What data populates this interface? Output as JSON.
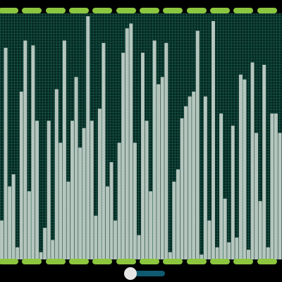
{
  "colors": {
    "background": "#000000",
    "panel": "#062a22",
    "grid": "#2f8f7d",
    "bar_fill": "#b8c8c0",
    "bar_grid": "#9fb8b0",
    "dash_lime": "#8cc63f",
    "slider_track": "#0e5a70",
    "slider_thumb": "#e6e6e6"
  },
  "top_strip": {
    "dash_count": 12
  },
  "bottom_strip": {
    "dash_count": 12
  },
  "slider": {
    "value": 0.0
  },
  "chart_data": {
    "type": "bar",
    "ylim": [
      0,
      1
    ],
    "grid": true,
    "values": [
      0.16,
      0.87,
      0.3,
      0.35,
      0.05,
      0.69,
      0.9,
      0.28,
      0.88,
      0.57,
      0.03,
      0.13,
      0.57,
      0.08,
      0.7,
      0.48,
      0.9,
      0.32,
      0.57,
      0.75,
      0.46,
      0.54,
      1.0,
      0.57,
      0.18,
      0.62,
      0.89,
      0.3,
      0.4,
      0.16,
      0.48,
      0.85,
      0.95,
      0.97,
      0.48,
      0.1,
      0.85,
      0.57,
      0.28,
      0.9,
      0.72,
      0.75,
      0.89,
      0.03,
      0.32,
      0.37,
      0.58,
      0.63,
      0.67,
      0.69,
      0.94,
      0.02,
      0.67,
      0.16,
      0.98,
      0.05,
      0.6,
      0.25,
      0.07,
      0.55,
      0.09,
      0.76,
      0.74,
      0.04,
      0.81,
      0.52,
      0.24,
      0.8,
      0.05,
      0.6,
      0.6,
      0.52
    ]
  }
}
